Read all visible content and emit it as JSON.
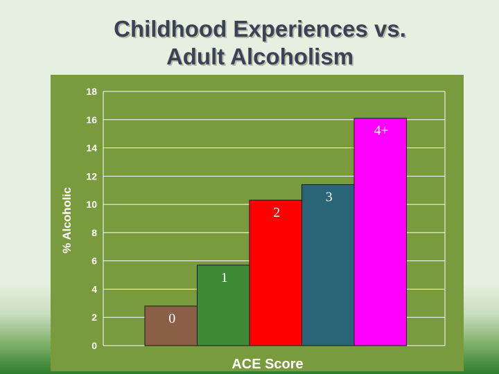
{
  "title": {
    "line1": "Childhood Experiences vs.",
    "line2": "Adult Alcoholism"
  },
  "chart_data": {
    "type": "bar",
    "title": "Childhood Experiences vs. Adult Alcoholism",
    "xlabel": "ACE Score",
    "ylabel": "% Alcoholic",
    "ylim": [
      0,
      18
    ],
    "yticks": [
      0,
      2,
      4,
      6,
      8,
      10,
      12,
      14,
      16,
      18
    ],
    "grid": true,
    "categories": [
      "0",
      "1",
      "2",
      "3",
      "4+"
    ],
    "values": [
      2.8,
      5.7,
      10.3,
      11.4,
      16.1
    ],
    "colors": [
      "#8b5e46",
      "#3f8a35",
      "#ff0000",
      "#2a6577",
      "#ff00ff"
    ],
    "label_color": "#ffffff"
  }
}
